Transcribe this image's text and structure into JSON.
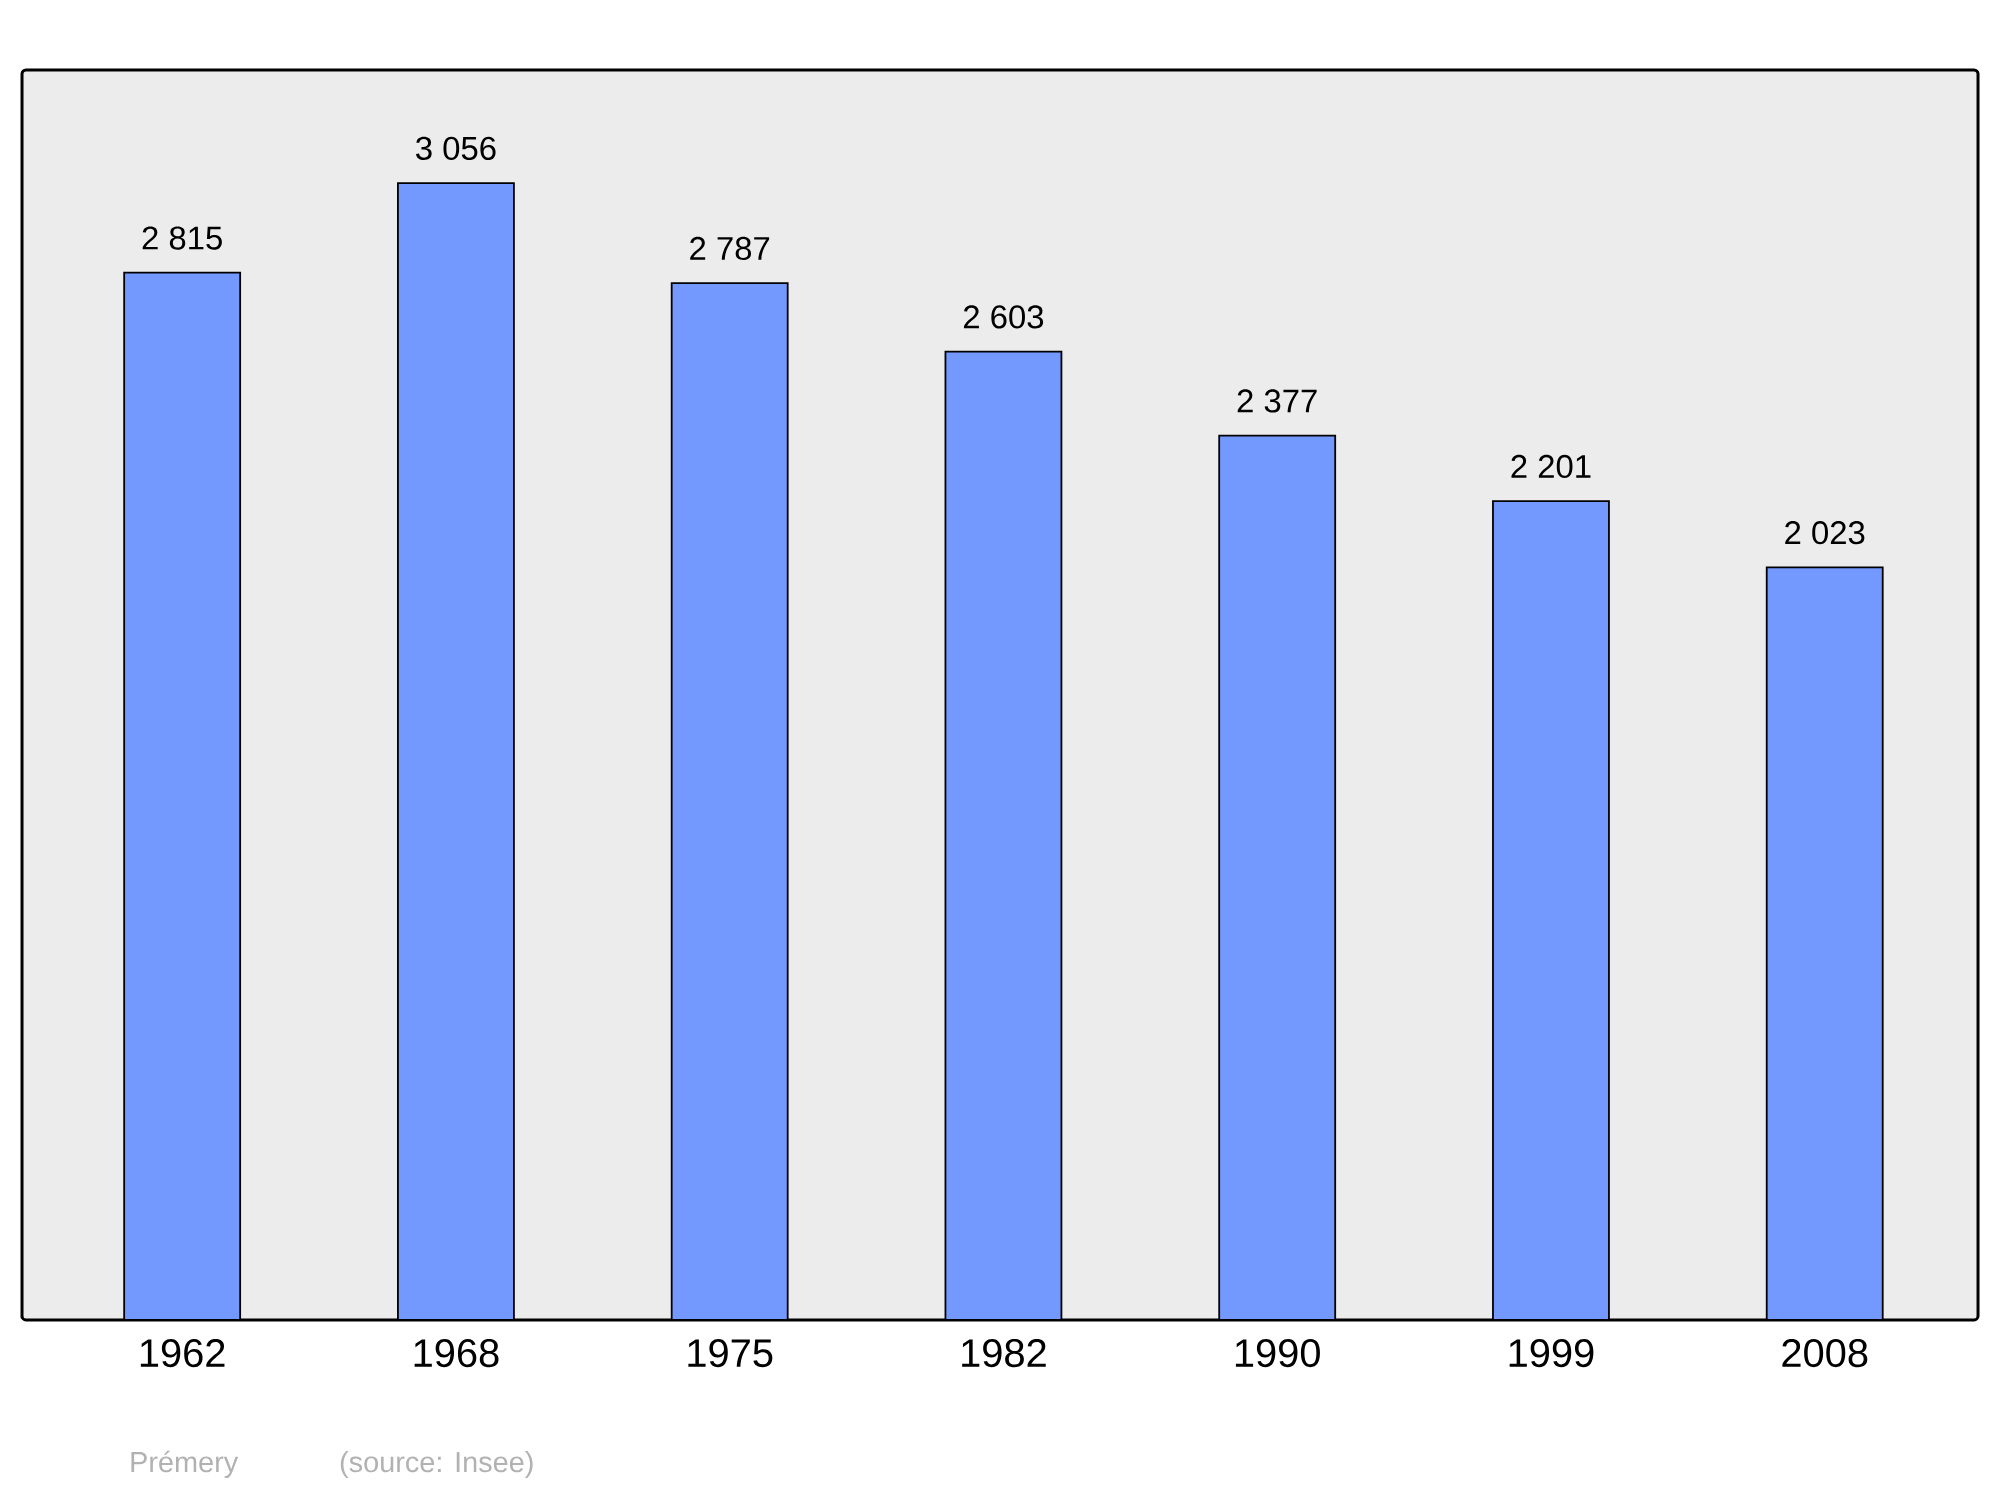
{
  "chart_data": {
    "type": "bar",
    "categories": [
      "1962",
      "1968",
      "1975",
      "1982",
      "1990",
      "1999",
      "2008"
    ],
    "values": [
      2815,
      3056,
      2787,
      2603,
      2377,
      2201,
      2023
    ],
    "value_labels": [
      "2 815",
      "3 056",
      "2 787",
      "2 603",
      "2 377",
      "2 201",
      "2 023"
    ],
    "color": "#7399ff",
    "ylim": [
      0,
      3360
    ],
    "annotations": [
      "Prémery",
      "(source: Insee)"
    ]
  }
}
